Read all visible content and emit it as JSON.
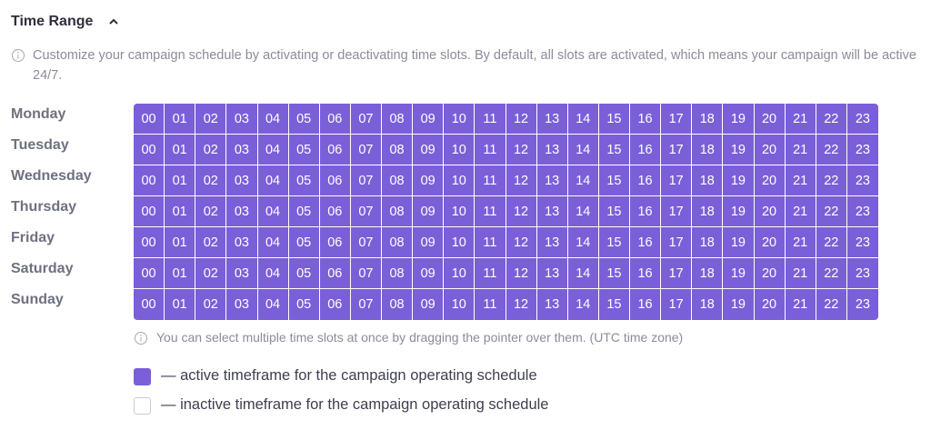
{
  "header": {
    "title": "Time Range"
  },
  "description": "Customize your campaign schedule by activating or deactivating time slots. By default, all slots are activated, which means your campaign will be active 24/7.",
  "days": [
    "Monday",
    "Tuesday",
    "Wednesday",
    "Thursday",
    "Friday",
    "Saturday",
    "Sunday"
  ],
  "hours": [
    "00",
    "01",
    "02",
    "03",
    "04",
    "05",
    "06",
    "07",
    "08",
    "09",
    "10",
    "11",
    "12",
    "13",
    "14",
    "15",
    "16",
    "17",
    "18",
    "19",
    "20",
    "21",
    "22",
    "23"
  ],
  "note": "You can select multiple time slots at once by dragging the pointer over them. (UTC time zone)",
  "legend": {
    "active": "— active timeframe for the campaign operating schedule",
    "inactive": "— inactive timeframe for the campaign operating schedule"
  }
}
